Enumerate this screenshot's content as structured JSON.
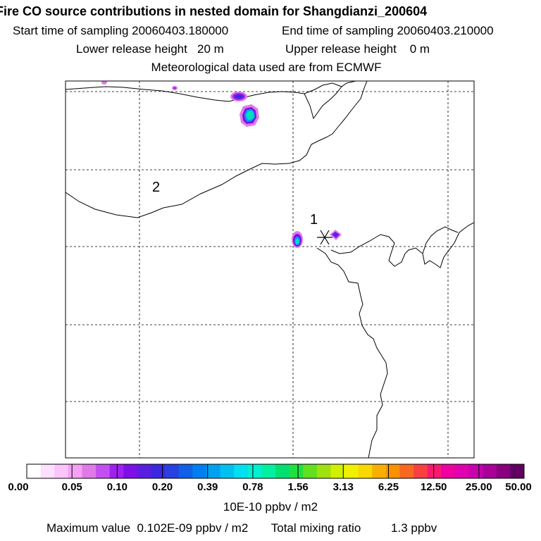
{
  "header": {
    "title": "Fire CO source contributions in nested domain for Shangdianzi_200604",
    "start_label": "Start time of sampling 20060403.180000",
    "end_label": "End time of sampling 20060403.210000",
    "lower_label": "Lower release height   20 m",
    "upper_label": "Upper release height    0 m",
    "met_label": "Meteorological data used are from ECMWF"
  },
  "map": {
    "site_labels": [
      "1",
      "2"
    ],
    "site_marker": "asterisk-icon"
  },
  "colorbar": {
    "tick_labels": [
      "0.00",
      "0.05",
      "0.10",
      "0.20",
      "0.39",
      "0.78",
      "1.56",
      "3.13",
      "6.25",
      "12.50",
      "25.00",
      "50.00"
    ],
    "colors": [
      "#ffffff",
      "#fde0fd",
      "#fbc4fb",
      "#f5a0f5",
      "#e07ae8",
      "#c24ff0",
      "#a020f0",
      "#7d10e8",
      "#5a1ee0",
      "#3a28e0",
      "#2840e0",
      "#1060e8",
      "#0080f0",
      "#00a0f0",
      "#00c0f0",
      "#00e0f0",
      "#00f0d0",
      "#00f0a0",
      "#00e070",
      "#20e040",
      "#60e020",
      "#a0e010",
      "#d0f000",
      "#f0f000",
      "#f8d800",
      "#f8b000",
      "#f89000",
      "#f86820",
      "#f84040",
      "#f81870",
      "#f000a0",
      "#e000b0",
      "#c800b0",
      "#a80098",
      "#880080",
      "#600060"
    ],
    "unit": "10E-10 ppbv / m2"
  },
  "footer": {
    "max_label": "Maximum value  0.102E-09 ppbv / m2",
    "total_label": "Total mixing ratio",
    "total_value": "1.3 ppbv"
  }
}
